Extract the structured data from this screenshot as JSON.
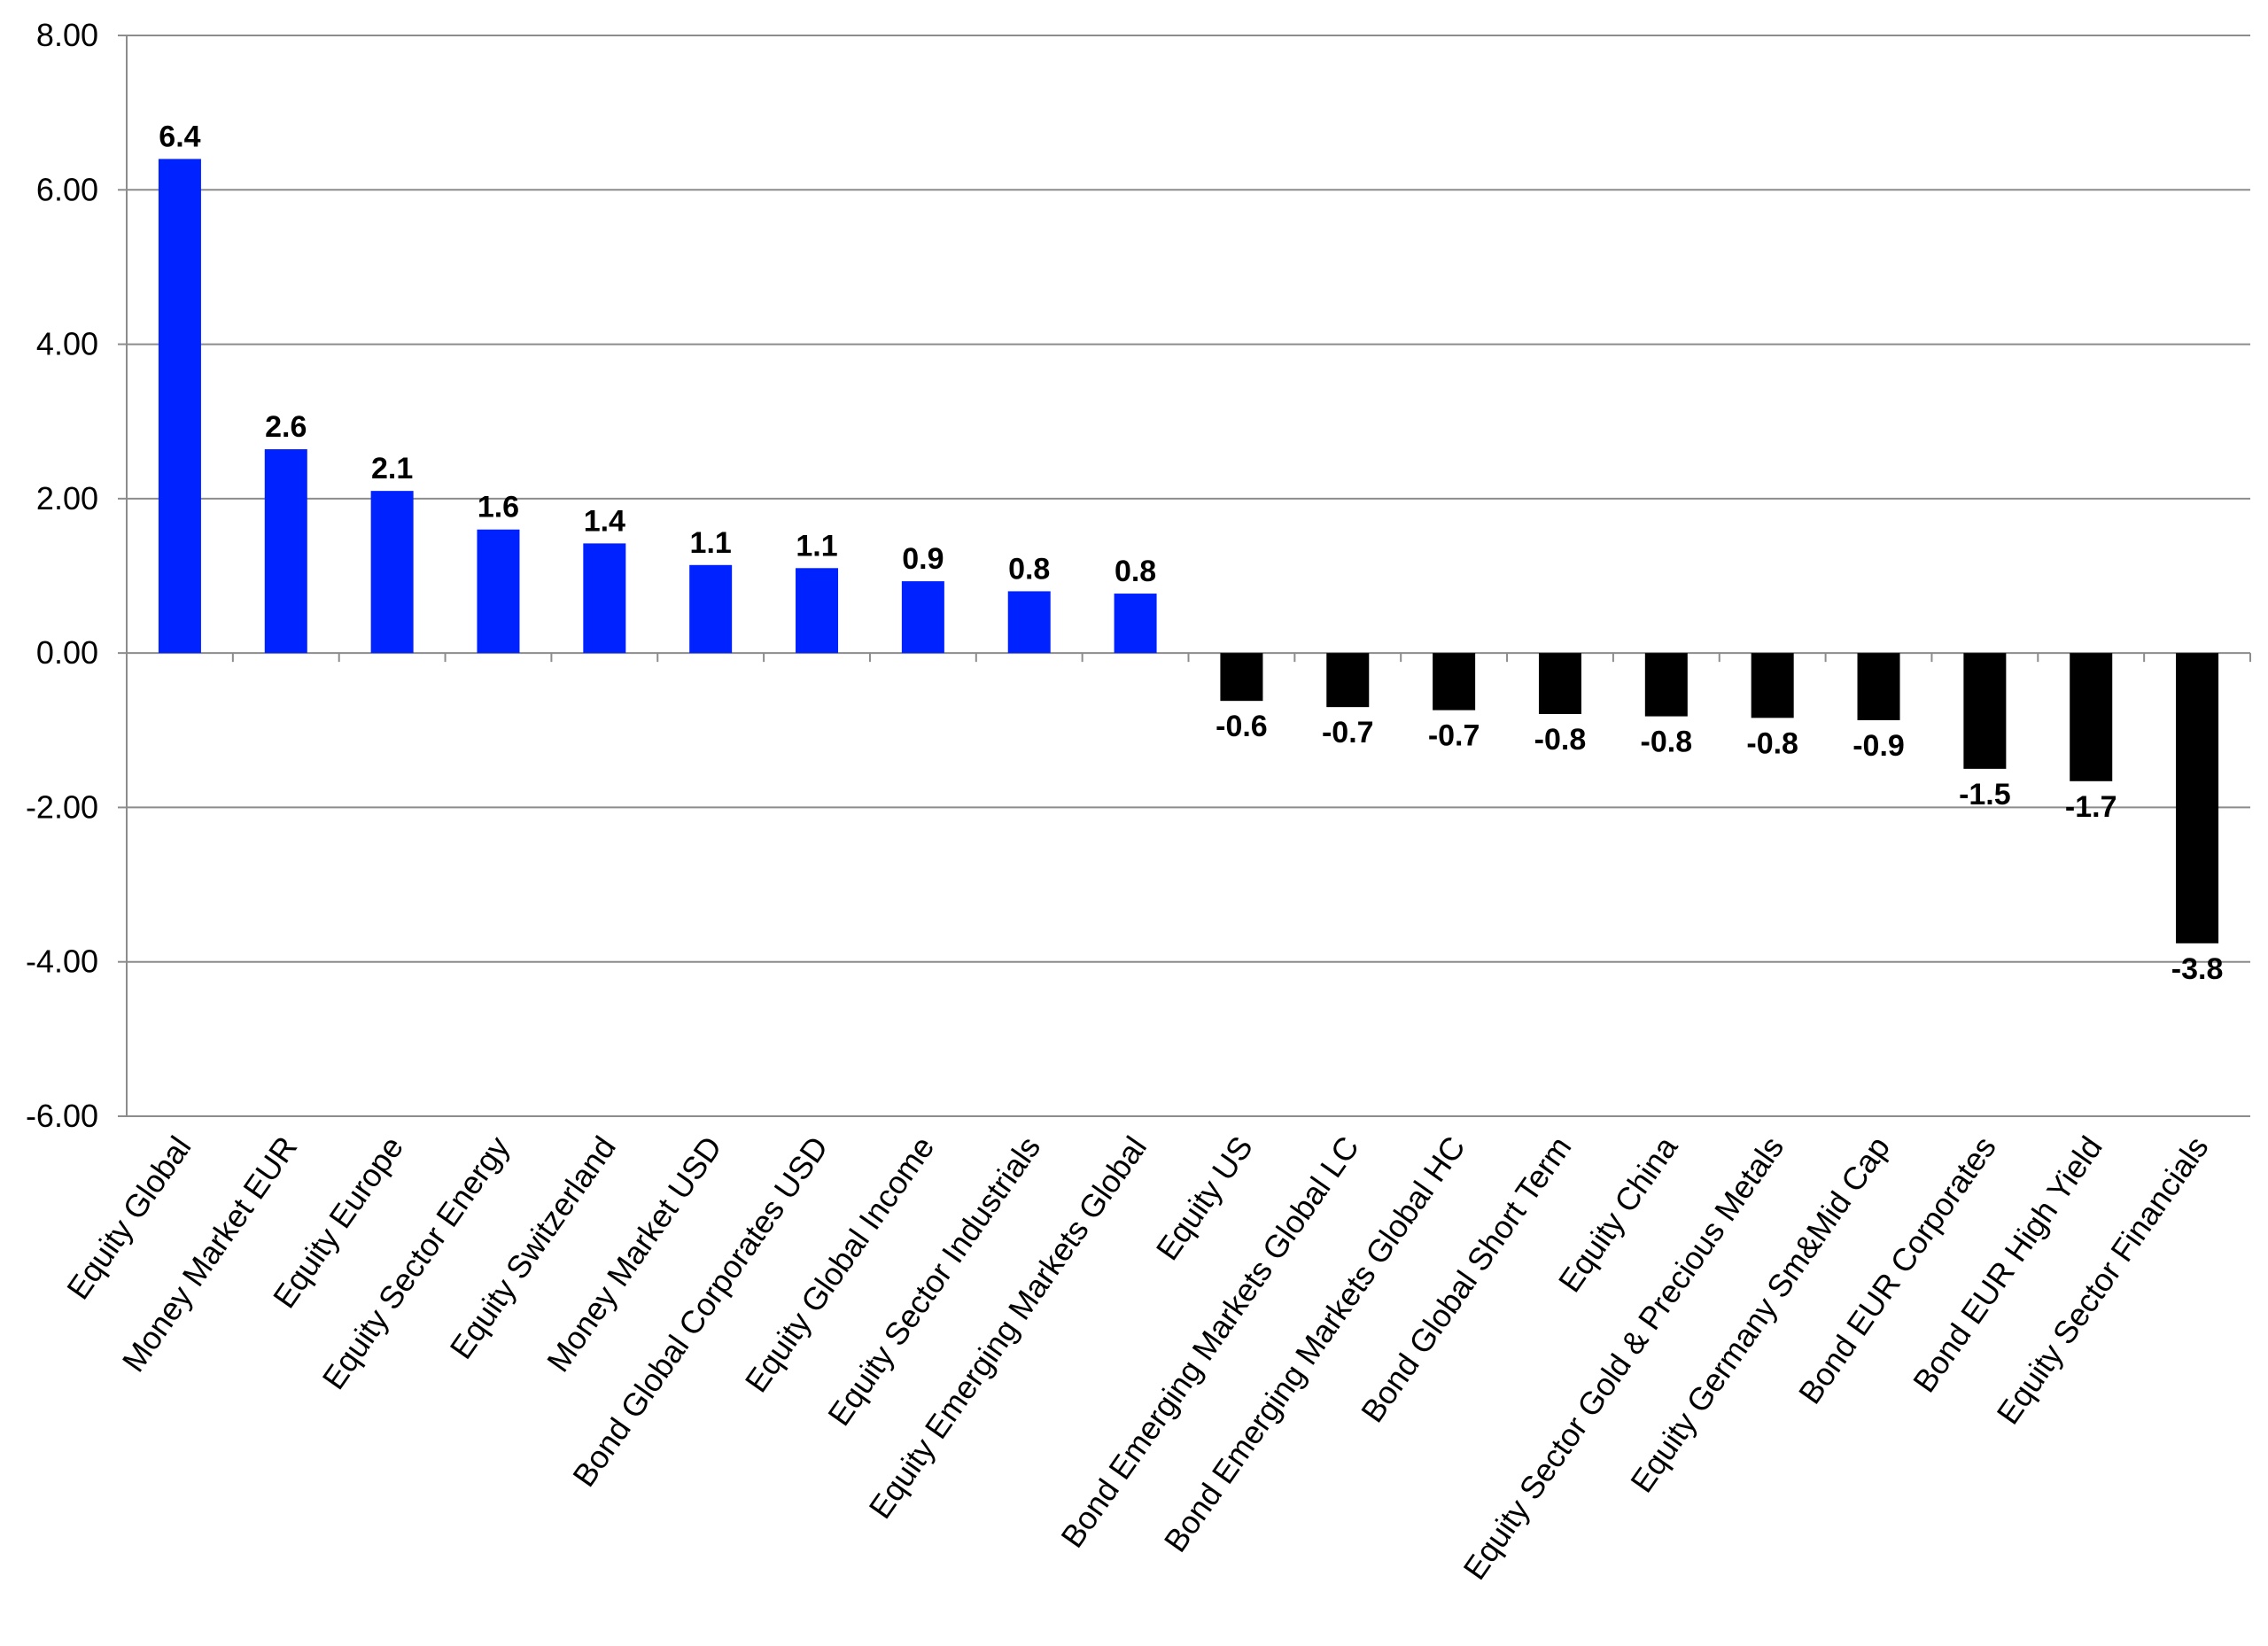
{
  "chart_data": {
    "type": "bar",
    "title": "",
    "xlabel": "",
    "ylabel": "",
    "ylim": [
      -6,
      8
    ],
    "yticks": [
      -6,
      -4,
      -2,
      0,
      2,
      4,
      6,
      8
    ],
    "ytick_labels": [
      "-6.00",
      "-4.00",
      "-2.00",
      "0.00",
      "2.00",
      "4.00",
      "6.00",
      "8.00"
    ],
    "grid": "horizontal",
    "legend": "none",
    "colors": {
      "positive": "#0022ff",
      "negative": "#000000",
      "grid": "#8c8c8c",
      "axis": "#8c8c8c"
    },
    "categories": [
      "Equity Global",
      "Money Market EUR",
      "Equity Europe",
      "Equity Sector Energy",
      "Equity Switzerland",
      "Money Market USD",
      "Bond Global Corporates USD",
      "Equity Global Income",
      "Equity Sector Industrials",
      "Equity Emerging Markets Global",
      "Equity US",
      "Bond Emerging Markets Global LC",
      "Bond Emerging Markets Global HC",
      "Bond Global Short Term",
      "Equity China",
      "Equity Sector Gold & Precious Metals",
      "Equity Germany Sm&Mid Cap",
      "Bond EUR Corporates",
      "Bond EUR High Yield",
      "Equity Sector Financials"
    ],
    "values": [
      6.4,
      2.64,
      2.1,
      1.6,
      1.42,
      1.14,
      1.1,
      0.93,
      0.8,
      0.77,
      -0.62,
      -0.7,
      -0.74,
      -0.79,
      -0.82,
      -0.84,
      -0.87,
      -1.5,
      -1.66,
      -3.76
    ],
    "data_labels": [
      "6.4",
      "2.6",
      "2.1",
      "1.6",
      "1.4",
      "1.1",
      "1.1",
      "0.9",
      "0.8",
      "0.8",
      "-0.6",
      "-0.7",
      "-0.7",
      "-0.8",
      "-0.8",
      "-0.8",
      "-0.9",
      "-1.5",
      "-1.7",
      "-3.8"
    ]
  }
}
